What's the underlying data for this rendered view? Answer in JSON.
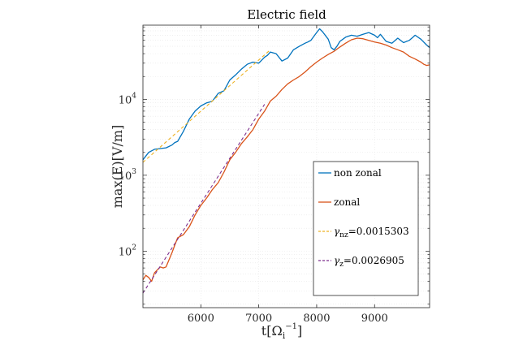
{
  "chart_data": {
    "type": "line",
    "title": "Electric field",
    "xlabel": "t[Ω_i^{-1}]",
    "xlabel_main": "t[Ω",
    "xlabel_sub": "i",
    "xlabel_sup": "−1",
    "xlabel_close": "]",
    "ylabel": "max(E)[V/m]",
    "xlim": [
      5000,
      9950
    ],
    "ylim": [
      18,
      95000
    ],
    "yscale": "log",
    "grid": true,
    "legend_position": "lower-right",
    "x_ticks": [
      {
        "value": 6000,
        "label": "6000"
      },
      {
        "value": 7000,
        "label": "7000"
      },
      {
        "value": 8000,
        "label": "8000"
      },
      {
        "value": 9000,
        "label": "9000"
      }
    ],
    "y_ticks": [
      {
        "value": 100,
        "base": "10",
        "exp": "2"
      },
      {
        "value": 1000,
        "base": "10",
        "exp": "3"
      },
      {
        "value": 10000,
        "base": "10",
        "exp": "4"
      }
    ],
    "series": [
      {
        "name": "non zonal",
        "legend_label": "non zonal",
        "color": "#0072BD",
        "style": "solid",
        "x": [
          5000,
          5100,
          5200,
          5300,
          5400,
          5500,
          5550,
          5600,
          5700,
          5800,
          5900,
          6000,
          6100,
          6150,
          6200,
          6300,
          6400,
          6500,
          6600,
          6700,
          6800,
          6900,
          7000,
          7100,
          7150,
          7200,
          7300,
          7400,
          7500,
          7600,
          7700,
          7800,
          7850,
          7900,
          8000,
          8050,
          8100,
          8200,
          8250,
          8300,
          8350,
          8400,
          8500,
          8600,
          8700,
          8800,
          8900,
          9000,
          9050,
          9100,
          9200,
          9300,
          9400,
          9500,
          9600,
          9700,
          9800,
          9900,
          9950
        ],
        "values": [
          1600,
          2000,
          2200,
          2250,
          2300,
          2500,
          2700,
          2800,
          3800,
          5500,
          7000,
          8200,
          9000,
          9200,
          9500,
          12000,
          13000,
          18000,
          21000,
          25000,
          29000,
          31000,
          30000,
          36000,
          38000,
          42000,
          40000,
          32000,
          35000,
          45000,
          50000,
          55000,
          57000,
          60000,
          76000,
          85000,
          78000,
          62000,
          48000,
          45000,
          50000,
          58000,
          66000,
          70000,
          68000,
          72000,
          76000,
          70000,
          65000,
          72000,
          58000,
          55000,
          64000,
          56000,
          60000,
          70000,
          62000,
          52000,
          48000
        ]
      },
      {
        "name": "zonal",
        "legend_label": "zonal",
        "color": "#D95319",
        "style": "solid",
        "x": [
          5000,
          5050,
          5100,
          5150,
          5200,
          5300,
          5350,
          5400,
          5500,
          5550,
          5600,
          5700,
          5800,
          5900,
          6000,
          6100,
          6200,
          6300,
          6400,
          6500,
          6600,
          6700,
          6800,
          6900,
          7000,
          7100,
          7200,
          7300,
          7400,
          7500,
          7600,
          7700,
          7800,
          7900,
          8000,
          8100,
          8200,
          8300,
          8400,
          8500,
          8600,
          8700,
          8800,
          8900,
          9000,
          9100,
          9200,
          9300,
          9400,
          9500,
          9600,
          9700,
          9800,
          9850,
          9900,
          9950
        ],
        "values": [
          42,
          48,
          45,
          40,
          52,
          62,
          60,
          62,
          95,
          120,
          150,
          165,
          210,
          300,
          400,
          500,
          650,
          800,
          1100,
          1600,
          2000,
          2600,
          3200,
          4000,
          5500,
          7000,
          9500,
          11000,
          13500,
          16000,
          18000,
          20000,
          23000,
          27000,
          31000,
          35000,
          39000,
          43000,
          49000,
          55000,
          61000,
          64000,
          63000,
          60000,
          57000,
          55000,
          52000,
          48000,
          45000,
          42000,
          37000,
          34000,
          31000,
          29000,
          28000,
          28500
        ]
      },
      {
        "name": "γ_nz fit",
        "legend_label": "=0.0015303",
        "legend_symbol": "γ",
        "legend_sub": "nz",
        "color": "#EDB120",
        "style": "dashed",
        "x": [
          5000,
          7200
        ],
        "values": [
          1480,
          45000
        ]
      },
      {
        "name": "γ_z fit",
        "legend_label": "=0.0026905",
        "legend_symbol": "γ",
        "legend_sub": "z",
        "color": "#7E2F8E",
        "style": "dashed",
        "x": [
          5000,
          7100
        ],
        "values": [
          28,
          8600
        ]
      }
    ]
  }
}
